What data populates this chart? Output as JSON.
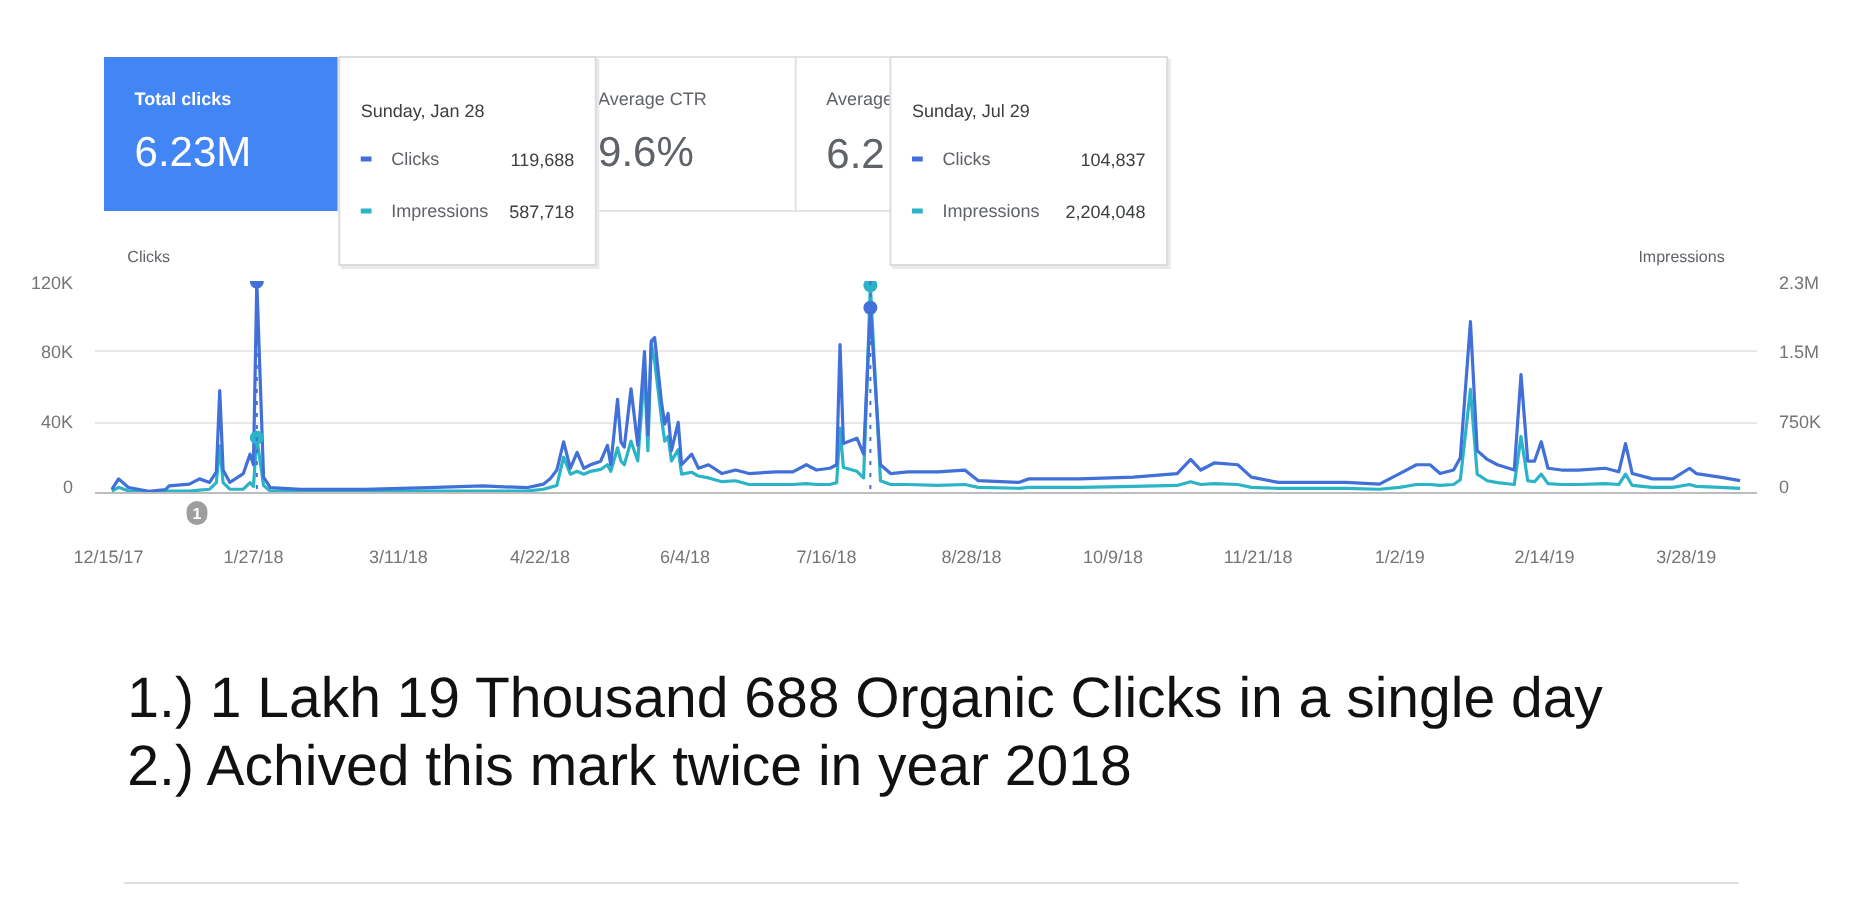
{
  "chart_data": {
    "type": "line",
    "ylabel": "Clicks",
    "y2label": "Impressions",
    "legend": "top",
    "xlim": [
      "2017-12-11",
      "2019-04-18"
    ],
    "xticks": [
      {
        "value": "2017-12-15",
        "label": "12/15/17"
      },
      {
        "value": "2018-01-27",
        "label": "1/27/18"
      },
      {
        "value": "2018-03-11",
        "label": "3/11/18"
      },
      {
        "value": "2018-04-22",
        "label": "4/22/18"
      },
      {
        "value": "2018-06-04",
        "label": "6/4/18"
      },
      {
        "value": "2018-07-16",
        "label": "7/16/18"
      },
      {
        "value": "2018-08-28",
        "label": "8/28/18"
      },
      {
        "value": "2018-10-09",
        "label": "10/9/18"
      },
      {
        "value": "2018-11-21",
        "label": "11/21/18"
      },
      {
        "value": "2019-01-02",
        "label": "1/2/19"
      },
      {
        "value": "2019-02-14",
        "label": "2/14/19"
      },
      {
        "value": "2019-03-28",
        "label": "3/28/19"
      }
    ],
    "ylim": [
      0,
      120000
    ],
    "yticks": [
      0,
      {
        "value": 40000,
        "label": "40K"
      },
      {
        "value": 80000,
        "label": "80K"
      },
      {
        "value": 120000,
        "label": "120K"
      }
    ],
    "y2lim": [
      0,
      2250000
    ],
    "y2ticks": [
      0,
      {
        "value": 750000,
        "label": "750K"
      },
      {
        "value": 1500000,
        "label": "1.5M"
      },
      {
        "value": 2250000,
        "label": "2.3M"
      }
    ],
    "grid": "y",
    "x": [
      "2017-12-16",
      "2017-12-18",
      "2017-12-21",
      "2017-12-27",
      "2018-01-01",
      "2018-01-02",
      "2018-01-08",
      "2018-01-11",
      "2018-01-14",
      "2018-01-16",
      "2018-01-17",
      "2018-01-18",
      "2018-01-20",
      "2018-01-24",
      "2018-01-26",
      "2018-01-27",
      "2018-01-28",
      "2018-01-30",
      "2018-02-01",
      "2018-02-10",
      "2018-03-01",
      "2018-03-20",
      "2018-04-05",
      "2018-04-18",
      "2018-04-23",
      "2018-04-25",
      "2018-04-27",
      "2018-04-29",
      "2018-05-01",
      "2018-05-03",
      "2018-05-05",
      "2018-05-07",
      "2018-05-10",
      "2018-05-12",
      "2018-05-13",
      "2018-05-15",
      "2018-05-16",
      "2018-05-17",
      "2018-05-19",
      "2018-05-21",
      "2018-05-23",
      "2018-05-24",
      "2018-05-25",
      "2018-05-26",
      "2018-05-28",
      "2018-05-29",
      "2018-05-30",
      "2018-05-31",
      "2018-06-02",
      "2018-06-03",
      "2018-06-06",
      "2018-06-08",
      "2018-06-11",
      "2018-06-15",
      "2018-06-19",
      "2018-06-23",
      "2018-07-01",
      "2018-07-06",
      "2018-07-10",
      "2018-07-13",
      "2018-07-17",
      "2018-07-19",
      "2018-07-20",
      "2018-07-21",
      "2018-07-25",
      "2018-07-27",
      "2018-07-29",
      "2018-08-01",
      "2018-08-04",
      "2018-08-09",
      "2018-08-18",
      "2018-08-26",
      "2018-08-30",
      "2018-09-11",
      "2018-09-14",
      "2018-09-29",
      "2018-10-15",
      "2018-10-28",
      "2018-11-01",
      "2018-11-04",
      "2018-11-08",
      "2018-11-15",
      "2018-11-19",
      "2018-11-27",
      "2018-12-07",
      "2018-12-17",
      "2018-12-27",
      "2019-01-02",
      "2019-01-07",
      "2019-01-11",
      "2019-01-14",
      "2019-01-18",
      "2019-01-20",
      "2019-01-23",
      "2019-01-25",
      "2019-01-28",
      "2019-01-31",
      "2019-02-05",
      "2019-02-07",
      "2019-02-09",
      "2019-02-11",
      "2019-02-13",
      "2019-02-15",
      "2019-02-19",
      "2019-02-24",
      "2019-03-04",
      "2019-03-08",
      "2019-03-10",
      "2019-03-12",
      "2019-03-18",
      "2019-03-24",
      "2019-03-29",
      "2019-03-31",
      "2019-04-07",
      "2019-04-13"
    ],
    "series": [
      {
        "name": "Clicks",
        "color": "#4170d8",
        "values": [
          2000,
          8000,
          3000,
          1000,
          2000,
          4000,
          5000,
          8000,
          6000,
          12000,
          58000,
          13000,
          6000,
          11000,
          22000,
          16000,
          119688,
          9000,
          3000,
          2000,
          2000,
          3000,
          4000,
          3000,
          5000,
          8000,
          13000,
          29000,
          14000,
          23000,
          14000,
          16000,
          18000,
          27000,
          16000,
          53000,
          29000,
          26000,
          59000,
          27000,
          80000,
          33000,
          86000,
          88000,
          52000,
          39000,
          45000,
          24000,
          40000,
          16000,
          22000,
          14000,
          16000,
          11000,
          13000,
          11000,
          12000,
          12000,
          16000,
          13000,
          14000,
          16000,
          84000,
          28000,
          31000,
          22000,
          104837,
          16000,
          11000,
          12000,
          12000,
          13000,
          7000,
          6000,
          8000,
          8000,
          9000,
          11000,
          19000,
          13000,
          17000,
          16000,
          9000,
          6000,
          6000,
          6000,
          5000,
          11000,
          16000,
          16000,
          11000,
          13000,
          20000,
          97000,
          24000,
          19000,
          16000,
          13000,
          67000,
          18000,
          18000,
          29000,
          14000,
          13000,
          13000,
          14000,
          12000,
          28000,
          11000,
          8000,
          8000,
          14000,
          11000,
          9000,
          7000
        ]
      },
      {
        "name": "Impressions",
        "color": "#2bb3c8",
        "axis": "y2",
        "values": [
          20000,
          60000,
          20000,
          10000,
          10000,
          20000,
          20000,
          30000,
          40000,
          110000,
          500000,
          110000,
          40000,
          40000,
          110000,
          70000,
          587718,
          80000,
          20000,
          20000,
          20000,
          20000,
          20000,
          20000,
          40000,
          60000,
          80000,
          380000,
          200000,
          230000,
          200000,
          230000,
          250000,
          300000,
          230000,
          480000,
          340000,
          300000,
          550000,
          340000,
          1290000,
          450000,
          1580000,
          1400000,
          800000,
          550000,
          600000,
          340000,
          460000,
          200000,
          220000,
          180000,
          160000,
          120000,
          130000,
          90000,
          90000,
          90000,
          100000,
          90000,
          90000,
          110000,
          690000,
          270000,
          230000,
          160000,
          2204048,
          130000,
          90000,
          90000,
          80000,
          90000,
          60000,
          50000,
          60000,
          60000,
          70000,
          80000,
          120000,
          90000,
          100000,
          90000,
          60000,
          50000,
          50000,
          50000,
          40000,
          60000,
          90000,
          90000,
          80000,
          90000,
          140000,
          1100000,
          200000,
          130000,
          110000,
          90000,
          600000,
          130000,
          120000,
          200000,
          100000,
          90000,
          90000,
          100000,
          90000,
          200000,
          80000,
          60000,
          60000,
          90000,
          70000,
          60000,
          50000
        ]
      }
    ],
    "ref_lines": [
      {
        "axis": "x",
        "value": "2018-01-28",
        "line_style": "dotted",
        "color": "#4170d8"
      },
      {
        "axis": "x",
        "value": "2018-07-29",
        "line_style": "dotted",
        "color": "#4170d8"
      }
    ],
    "annotations": [
      "Total clicks",
      "6.23M",
      "Average CTR",
      "9.6%",
      "Average",
      "6.2",
      "Sunday, Jan 28",
      "119,688",
      "587,718",
      "Sunday, Jul 29",
      "104,837",
      "2,204,048",
      "1",
      "1.) 1 Lakh 19 Thousand 688 Organic Clicks in a single day",
      "2.) Achived this mark twice in year 2018"
    ]
  }
}
